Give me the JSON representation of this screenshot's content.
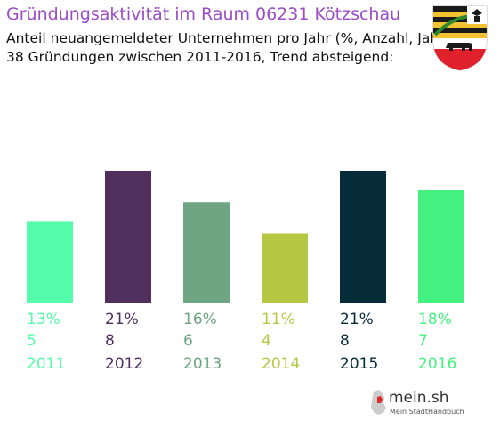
{
  "header": {
    "title": "Gründungsaktivität im Raum 06231 Kötzschau",
    "subtitle_1": "Anteil neuangemeldeter Unternehmen pro Jahr (%, Anzahl, Jahr)",
    "subtitle_2": "38 Gründungen zwischen 2011-2016, Trend absteigend:"
  },
  "crest": {
    "icon": "coat-of-arms-icon"
  },
  "logo": {
    "name": "mein.sh",
    "tagline": "Mein StadtHandbuch",
    "icon": "germany-map-icon"
  },
  "chart_data": {
    "type": "bar",
    "title": "Gründungsaktivität im Raum 06231 Kötzschau",
    "categories": [
      "2011",
      "2012",
      "2013",
      "2014",
      "2015",
      "2016"
    ],
    "series": [
      {
        "values": [
          13,
          21,
          16,
          11,
          21,
          18
        ],
        "counts": [
          5,
          8,
          6,
          4,
          8,
          7
        ],
        "percent_labels": [
          "13%",
          "21%",
          "16%",
          "11%",
          "21%",
          "18%"
        ],
        "count_labels": [
          "5",
          "8",
          "6",
          "4",
          "8",
          "7"
        ],
        "colors": [
          "#55fcaa",
          "#513060",
          "#6ea583",
          "#b5c844",
          "#062c3a",
          "#44f07f"
        ]
      }
    ],
    "ylim": [
      0,
      21
    ],
    "grid": false,
    "legend": "none"
  }
}
